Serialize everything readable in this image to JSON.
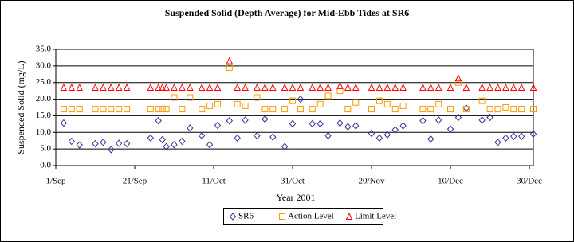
{
  "chart_data": {
    "type": "scatter",
    "title": "Suspended Solid (Depth Average) for Mid-Ebb Tides at SR6",
    "x_label": "Year 2001",
    "y_label": "Suspended Solid (mg/L)",
    "x": [
      "2001-09-03",
      "2001-09-05",
      "2001-09-07",
      "2001-09-11",
      "2001-09-13",
      "2001-09-15",
      "2001-09-17",
      "2001-09-19",
      "2001-09-25",
      "2001-09-27",
      "2001-09-28",
      "2001-09-29",
      "2001-10-01",
      "2001-10-03",
      "2001-10-05",
      "2001-10-08",
      "2001-10-10",
      "2001-10-12",
      "2001-10-15",
      "2001-10-17",
      "2001-10-19",
      "2001-10-22",
      "2001-10-24",
      "2001-10-26",
      "2001-10-29",
      "2001-10-31",
      "2001-11-02",
      "2001-11-05",
      "2001-11-07",
      "2001-11-09",
      "2001-11-12",
      "2001-11-14",
      "2001-11-16",
      "2001-11-20",
      "2001-11-22",
      "2001-11-24",
      "2001-11-26",
      "2001-11-28",
      "2001-12-03",
      "2001-12-05",
      "2001-12-07",
      "2001-12-10",
      "2001-12-12",
      "2001-12-14",
      "2001-12-18",
      "2001-12-20",
      "2001-12-22",
      "2001-12-24",
      "2001-12-26",
      "2001-12-28",
      "2001-12-31"
    ],
    "series": [
      {
        "name": "SR6",
        "color": "#333399",
        "marker": "diamond",
        "values": [
          12.8,
          7.3,
          6.2,
          6.6,
          7.0,
          4.8,
          6.7,
          6.6,
          8.3,
          13.5,
          7.8,
          5.7,
          6.3,
          7.3,
          11.3,
          9.0,
          6.3,
          12.1,
          13.5,
          8.3,
          13.7,
          9.0,
          14.0,
          8.6,
          5.7,
          12.6,
          20.0,
          12.6,
          12.6,
          9.0,
          12.8,
          11.7,
          12.0,
          9.7,
          8.3,
          9.3,
          10.8,
          12.0,
          13.5,
          8.0,
          13.7,
          11.0,
          14.5,
          17.3,
          13.7,
          14.5,
          7.0,
          8.3,
          8.8,
          8.8,
          9.5
        ]
      },
      {
        "name": "Action Level",
        "color": "#FF9900",
        "marker": "square",
        "values": [
          17,
          17,
          17,
          17,
          17,
          17,
          17,
          17,
          17,
          17,
          17,
          17,
          20.5,
          17,
          20.5,
          17,
          18,
          18.5,
          29.5,
          18.5,
          18,
          20.5,
          17,
          17,
          17,
          19.5,
          17,
          17,
          18.5,
          21,
          22.5,
          17,
          19,
          17,
          19.5,
          18.5,
          17,
          18,
          17,
          17,
          18.5,
          17,
          25,
          17,
          19.5,
          17,
          17,
          17.5,
          17,
          17,
          17
        ]
      },
      {
        "name": "Limit Level",
        "color": "#FF0000",
        "marker": "triangle",
        "values": [
          23.5,
          23.5,
          23.5,
          23.5,
          23.5,
          23.5,
          23.5,
          23.5,
          23.5,
          23.5,
          23.5,
          23.5,
          23.5,
          23.5,
          23.5,
          23.5,
          23.5,
          23.5,
          31.5,
          23.5,
          23.5,
          23.5,
          23.5,
          23.5,
          23.5,
          23.5,
          23.5,
          23.5,
          23.5,
          23.5,
          24,
          23.5,
          23.5,
          23.5,
          23.5,
          23.5,
          23.5,
          23.5,
          23.5,
          23.5,
          23.5,
          23.5,
          26.3,
          23.5,
          23.5,
          23.5,
          23.5,
          23.5,
          23.5,
          23.5,
          23.5
        ]
      }
    ],
    "xlim": [
      "2001-09-01",
      "2001-12-31"
    ],
    "xticks": [
      {
        "value": "2001-09-01",
        "label": "1/Sep"
      },
      {
        "value": "2001-09-21",
        "label": "21/Sep"
      },
      {
        "value": "2001-10-11",
        "label": "11/Oct"
      },
      {
        "value": "2001-10-31",
        "label": "31/Oct"
      },
      {
        "value": "2001-11-20",
        "label": "20/Nov"
      },
      {
        "value": "2001-12-10",
        "label": "10/Dec"
      },
      {
        "value": "2001-12-30",
        "label": "30/Dec"
      }
    ],
    "ylim": [
      0,
      35
    ],
    "yticks": [
      {
        "value": 0,
        "label": "0.0"
      },
      {
        "value": 5,
        "label": "5.0"
      },
      {
        "value": 10,
        "label": "10.0"
      },
      {
        "value": 15,
        "label": "15.0"
      },
      {
        "value": 20,
        "label": "20.0"
      },
      {
        "value": 25,
        "label": "25.0"
      },
      {
        "value": 30,
        "label": "30.0"
      },
      {
        "value": 35,
        "label": "35.0"
      }
    ],
    "grid": true,
    "legend": "bottom"
  }
}
